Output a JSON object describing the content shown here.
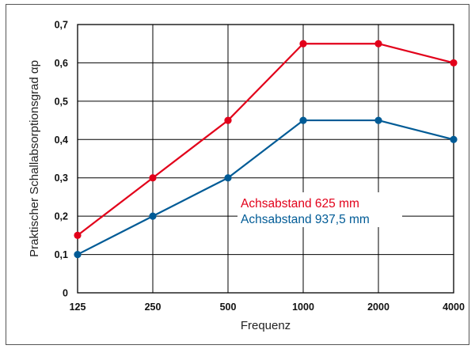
{
  "chart_data": {
    "type": "line",
    "title": "",
    "xlabel": "Frequenz",
    "ylabel": "Praktischer Schallabsorptionsgrad αp",
    "categories": [
      "125",
      "250",
      "500",
      "1000",
      "2000",
      "4000"
    ],
    "ylim": [
      0,
      0.7
    ],
    "y_ticks": [
      0,
      0.1,
      0.2,
      0.3,
      0.4,
      0.5,
      0.6,
      0.7
    ],
    "y_tick_labels": [
      "0",
      "0,1",
      "0,2",
      "0,3",
      "0,4",
      "0,5",
      "0,6",
      "0,7"
    ],
    "grid": true,
    "legend_position": "center-right",
    "series": [
      {
        "name": "Achsabstand 625 mm",
        "color": "#e2001a",
        "values": [
          0.15,
          0.3,
          0.45,
          0.65,
          0.65,
          0.6
        ]
      },
      {
        "name": "Achsabstand 937,5 mm",
        "color": "#005b96",
        "values": [
          0.1,
          0.2,
          0.3,
          0.45,
          0.45,
          0.4
        ]
      }
    ]
  }
}
